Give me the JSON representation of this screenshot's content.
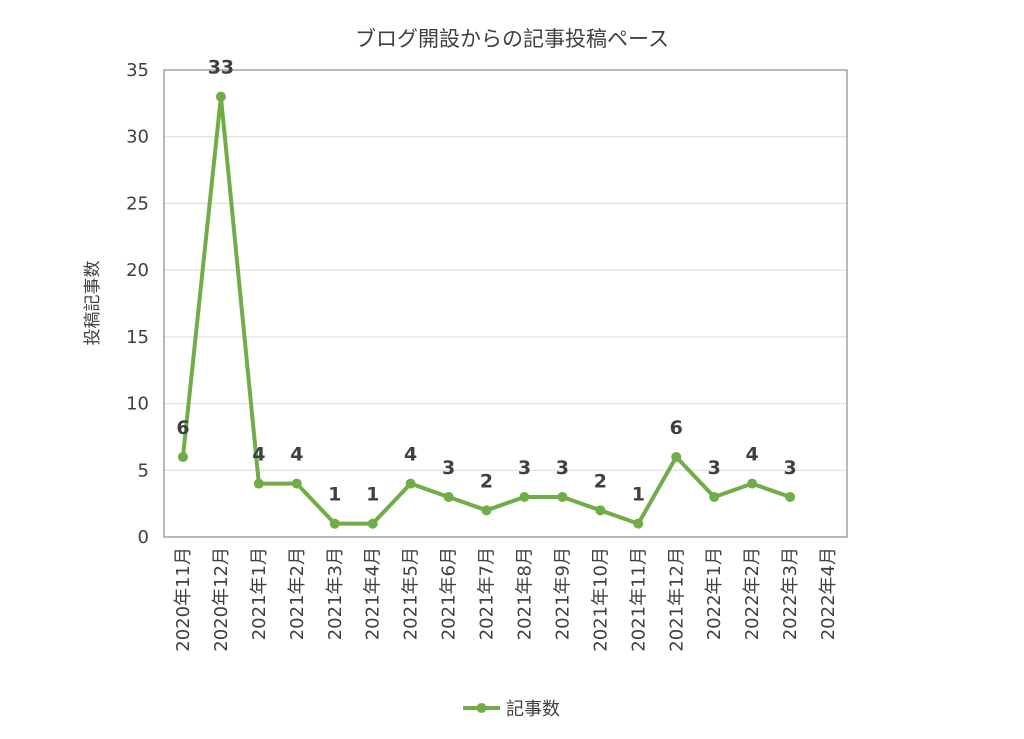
{
  "chart_data": {
    "type": "line",
    "title": "ブログ開設からの記事投稿ペース",
    "ylabel": "投稿記事数",
    "xlabel": "",
    "ylim": [
      0,
      35
    ],
    "yticks": [
      0,
      5,
      10,
      15,
      20,
      25,
      30,
      35
    ],
    "categories": [
      "2020年11月",
      "2020年12月",
      "2021年1月",
      "2021年2月",
      "2021年3月",
      "2021年4月",
      "2021年5月",
      "2021年6月",
      "2021年7月",
      "2021年8月",
      "2021年9月",
      "2021年10月",
      "2021年11月",
      "2021年12月",
      "2022年1月",
      "2022年2月",
      "2022年3月",
      "2022年4月"
    ],
    "series": [
      {
        "name": "記事数",
        "values": [
          6,
          33,
          4,
          4,
          1,
          1,
          4,
          3,
          2,
          3,
          3,
          2,
          1,
          6,
          3,
          4,
          3,
          null
        ],
        "color": "#70ad47"
      }
    ],
    "grid": true,
    "legend": "bottom",
    "data_labels": true
  }
}
